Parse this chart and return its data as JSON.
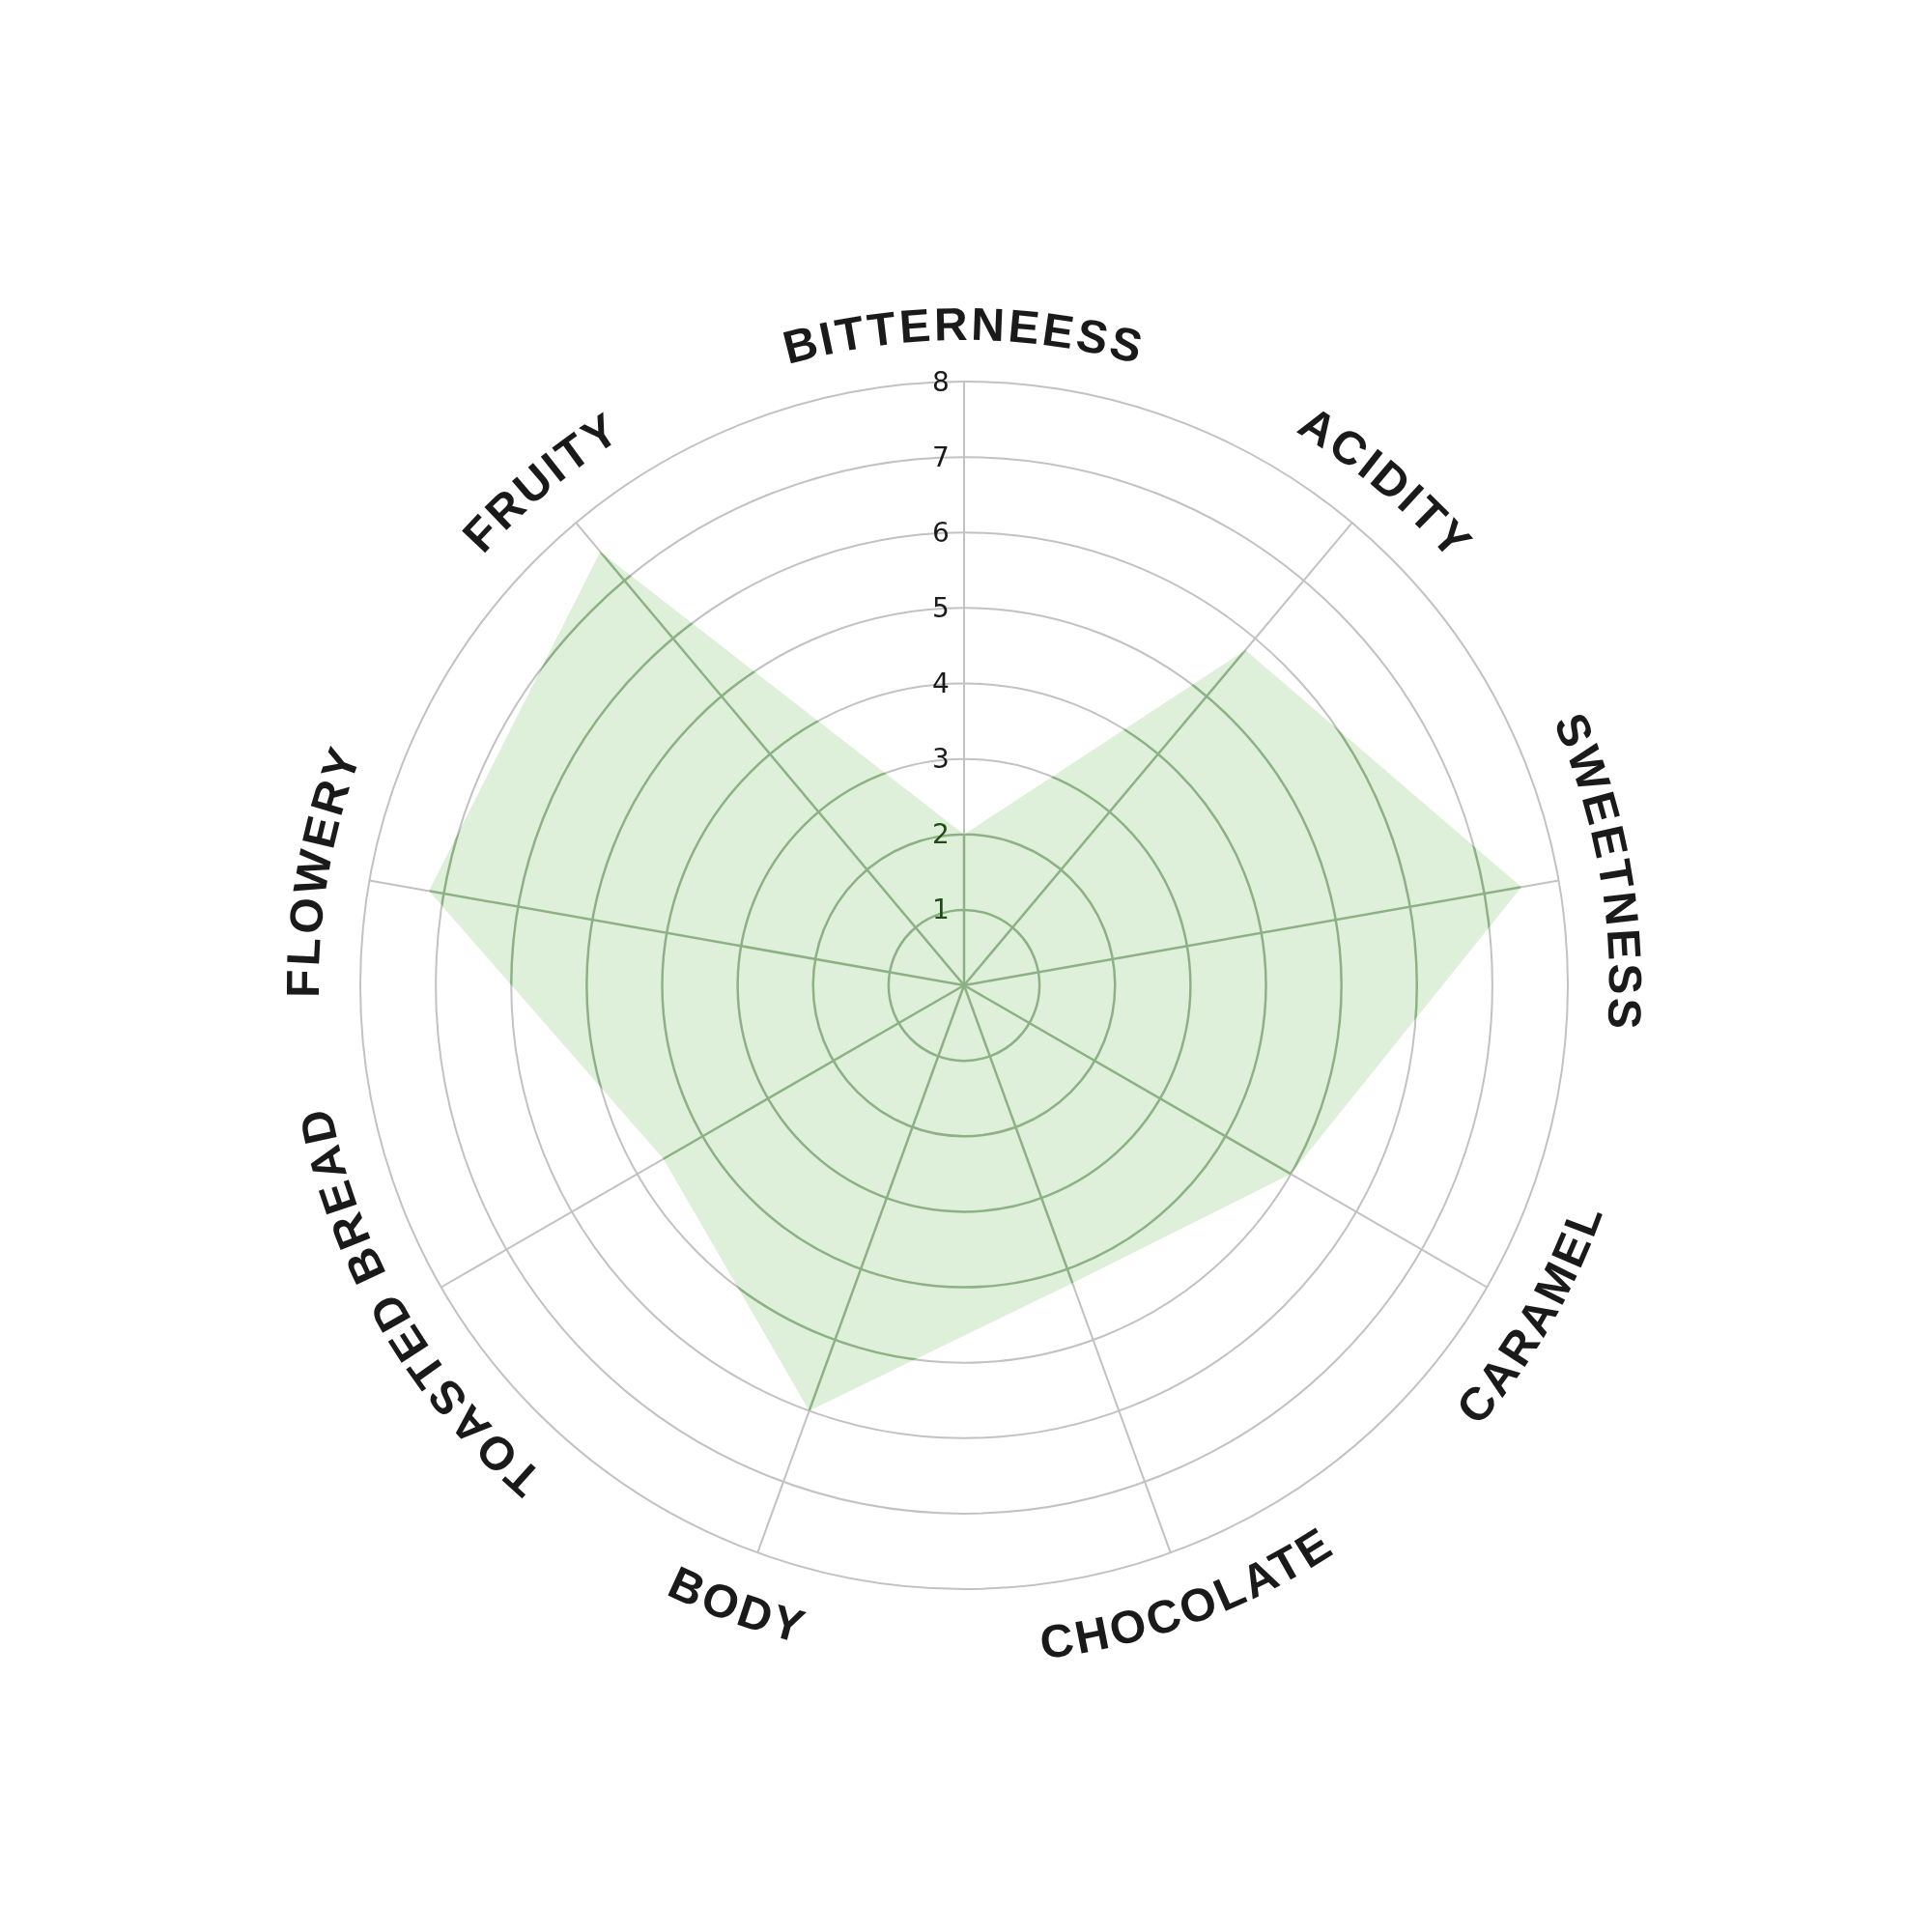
{
  "chart_data": {
    "type": "radar",
    "categories": [
      "BITTERNEESS",
      "ACIDITY",
      "SWEETNESS",
      "CARAMEL",
      "CHOCOLATE",
      "BODY",
      "TOASTED BREAD",
      "FLOWERY",
      "FRUITY"
    ],
    "series": [
      {
        "color": "#dff0da",
        "values": [
          2,
          5.8,
          7.5,
          5,
          4.2,
          6,
          4.6,
          7.2,
          7.5
        ]
      }
    ],
    "ylim": [
      0,
      8
    ],
    "yticks": [
      1,
      2,
      3,
      4,
      5,
      6,
      7,
      8
    ],
    "grid": true
  }
}
